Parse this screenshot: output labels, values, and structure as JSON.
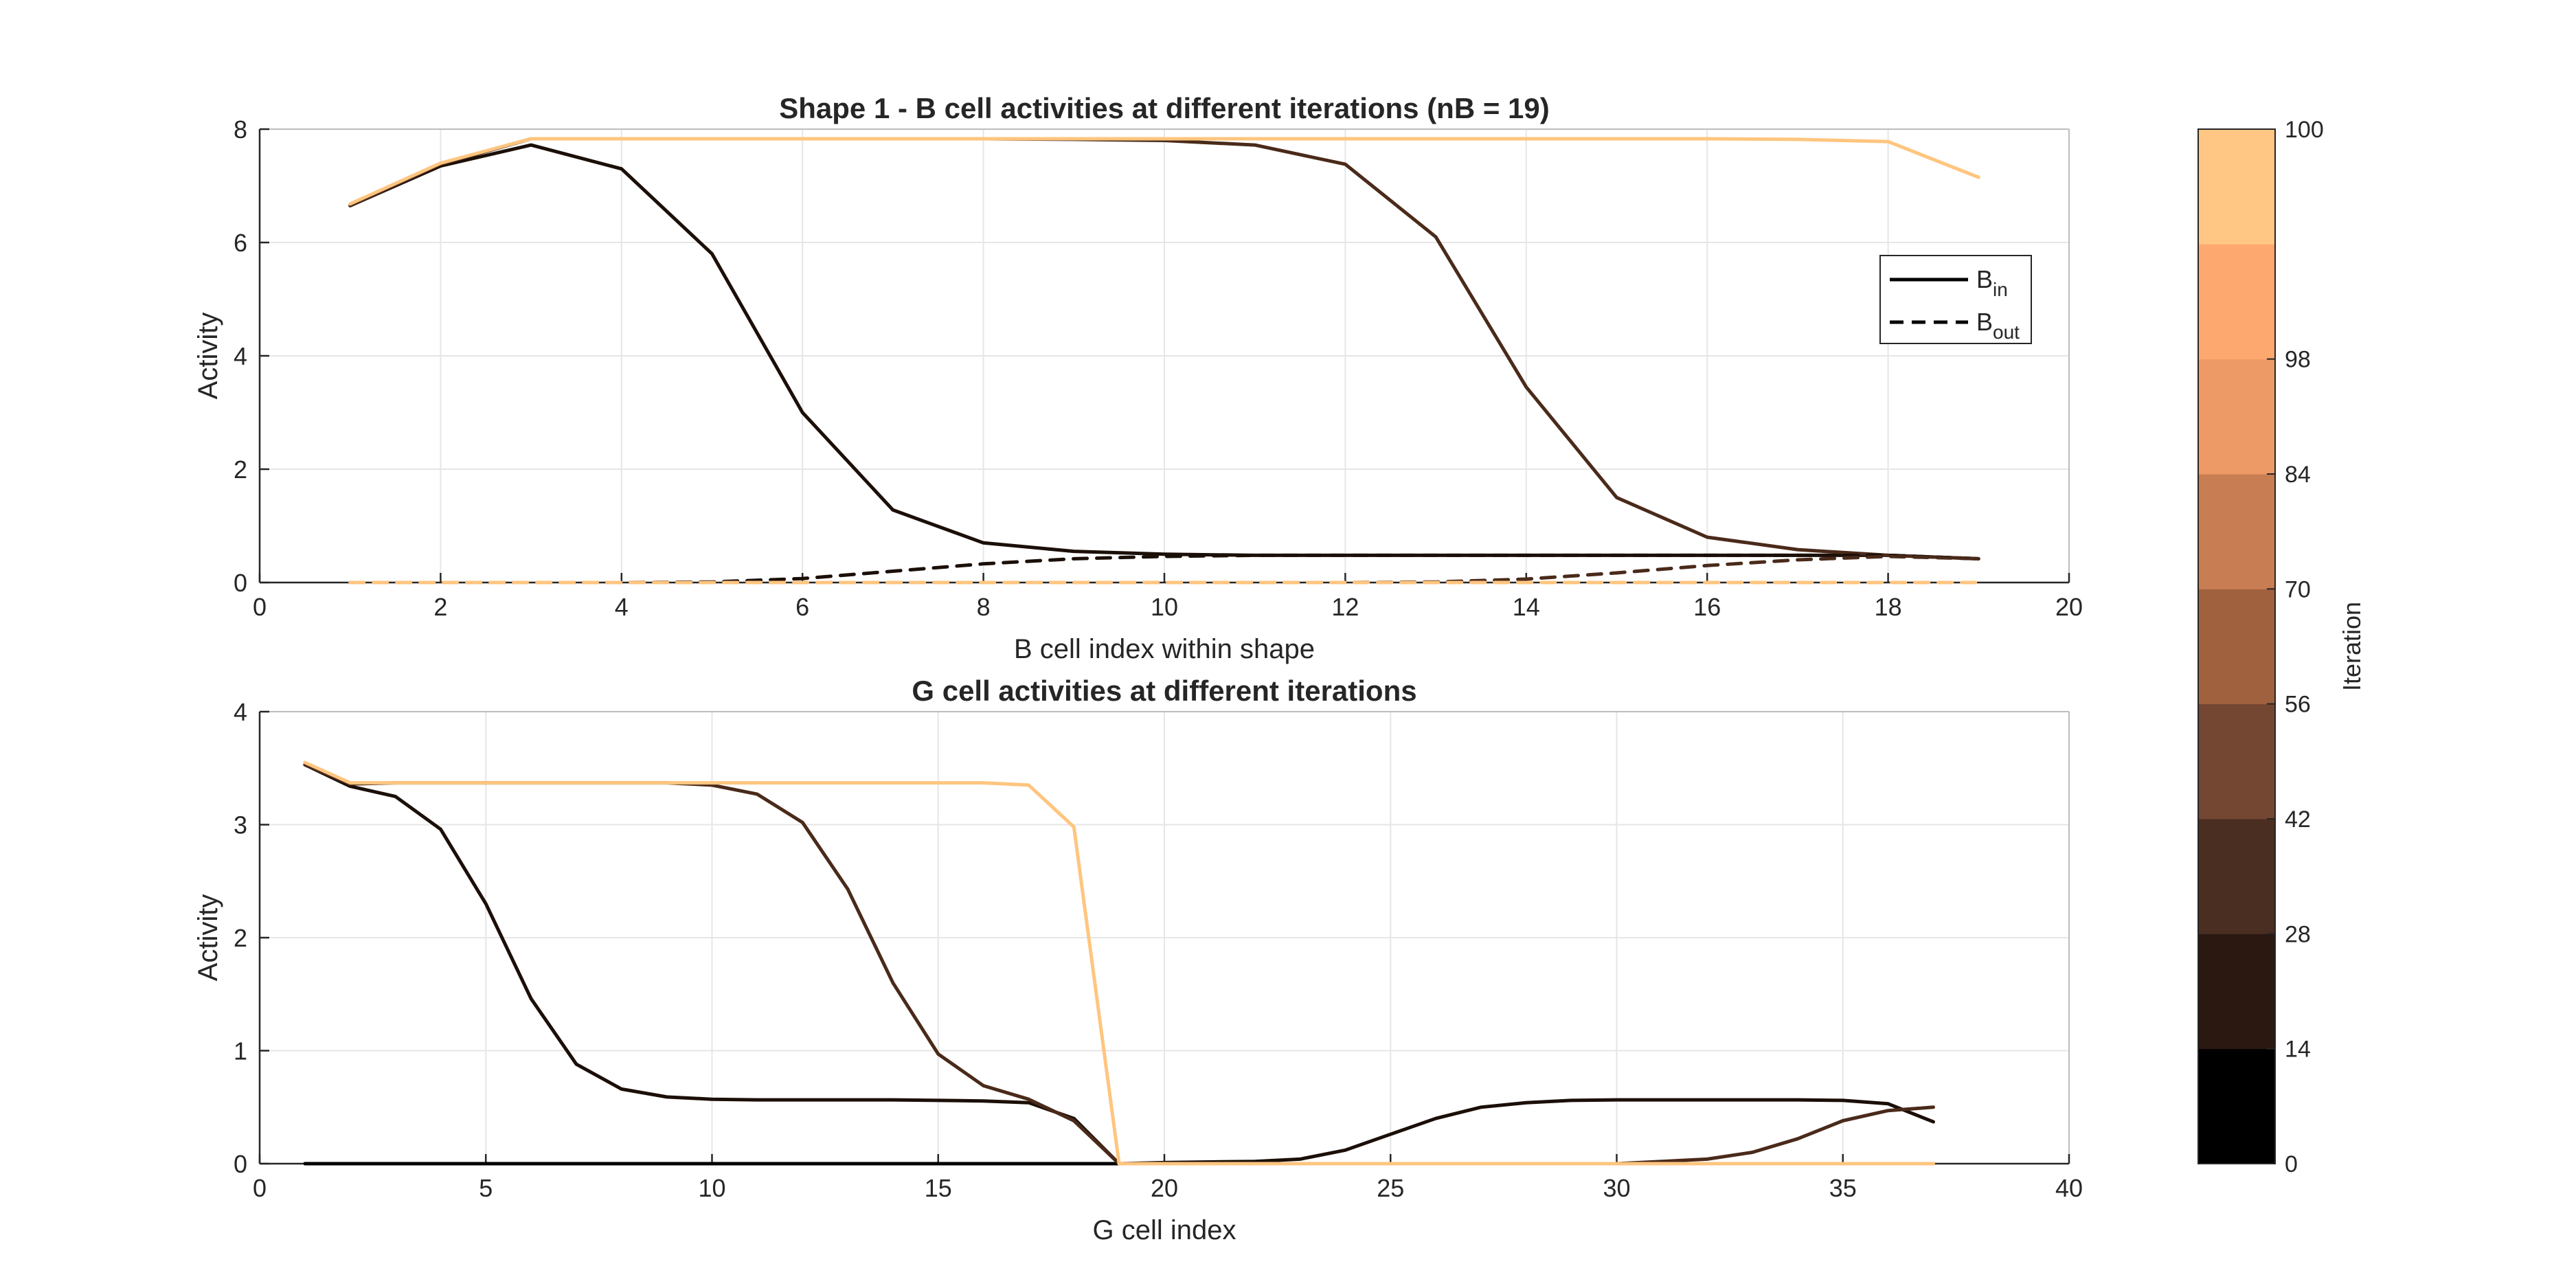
{
  "chart_data": [
    {
      "type": "line",
      "title": "Shape 1 - B cell activities at different iterations (nB = 19)",
      "xlabel": "B cell index within shape",
      "ylabel": "Activity",
      "xlim": [
        0,
        20
      ],
      "ylim": [
        0,
        8
      ],
      "xticks": [
        0,
        2,
        4,
        6,
        8,
        10,
        12,
        14,
        16,
        18,
        20
      ],
      "yticks": [
        0,
        2,
        4,
        6,
        8
      ],
      "grid": true,
      "legend": {
        "placement": "right",
        "entries": [
          {
            "main": "B",
            "sub": "in",
            "style": "solid"
          },
          {
            "main": "B",
            "sub": "out",
            "style": "dashed"
          }
        ]
      },
      "x": [
        1,
        2,
        3,
        4,
        5,
        6,
        7,
        8,
        9,
        10,
        11,
        12,
        13,
        14,
        15,
        16,
        17,
        18,
        19
      ],
      "series": [
        {
          "style": "solid",
          "color": "#1b0f08",
          "values": [
            6.65,
            7.35,
            7.72,
            7.3,
            5.8,
            3.0,
            1.28,
            0.7,
            0.55,
            0.5,
            0.48,
            0.48,
            0.48,
            0.48,
            0.48,
            0.48,
            0.48,
            0.48,
            0.42
          ]
        },
        {
          "style": "solid",
          "color": "#4a2a1a",
          "values": [
            6.65,
            7.38,
            7.83,
            7.83,
            7.83,
            7.83,
            7.83,
            7.83,
            7.82,
            7.8,
            7.72,
            7.38,
            6.1,
            3.45,
            1.5,
            0.8,
            0.58,
            0.48,
            0.42
          ]
        },
        {
          "style": "solid",
          "color": "#ffc57f",
          "values": [
            6.68,
            7.4,
            7.83,
            7.83,
            7.83,
            7.83,
            7.83,
            7.83,
            7.83,
            7.83,
            7.83,
            7.83,
            7.83,
            7.83,
            7.83,
            7.83,
            7.82,
            7.78,
            7.15
          ]
        },
        {
          "style": "dashed",
          "color": "#1b0f08",
          "values": [
            0,
            0,
            0,
            0,
            0.01,
            0.07,
            0.2,
            0.33,
            0.42,
            0.46,
            0.48,
            0.48,
            0.48,
            0.48,
            0.48,
            0.48,
            0.48,
            0.48,
            0.42
          ]
        },
        {
          "style": "dashed",
          "color": "#4a2a1a",
          "values": [
            0,
            0,
            0,
            0,
            0,
            0,
            0,
            0,
            0,
            0,
            0,
            0,
            0.01,
            0.06,
            0.17,
            0.3,
            0.4,
            0.46,
            0.42
          ]
        },
        {
          "style": "dashed",
          "color": "#ffc57f",
          "values": [
            0,
            0,
            0,
            0,
            0,
            0,
            0,
            0,
            0,
            0,
            0,
            0,
            0,
            0,
            0,
            0,
            0,
            0,
            0
          ]
        }
      ]
    },
    {
      "type": "line",
      "title": "G cell activities at different iterations",
      "xlabel": "G cell index",
      "ylabel": "Activity",
      "xlim": [
        0,
        40
      ],
      "ylim": [
        0,
        4
      ],
      "xticks": [
        0,
        5,
        10,
        15,
        20,
        25,
        30,
        35,
        40
      ],
      "yticks": [
        0,
        1,
        2,
        3,
        4
      ],
      "grid": true,
      "x": [
        1,
        2,
        3,
        4,
        5,
        6,
        7,
        8,
        9,
        10,
        11,
        12,
        13,
        14,
        15,
        16,
        17,
        18,
        19,
        20,
        21,
        22,
        23,
        24,
        25,
        26,
        27,
        28,
        29,
        30,
        31,
        32,
        33,
        34,
        35,
        36,
        37
      ],
      "series": [
        {
          "style": "solid",
          "color": "#000000",
          "values": [
            0,
            0,
            0,
            0,
            0,
            0,
            0,
            0,
            0,
            0,
            0,
            0,
            0,
            0,
            0,
            0,
            0,
            0,
            0,
            0,
            0,
            0,
            0,
            0,
            0,
            0,
            0,
            0,
            0,
            0,
            0,
            0,
            0,
            0,
            0,
            0,
            0
          ]
        },
        {
          "style": "solid",
          "color": "#1b0f08",
          "values": [
            3.53,
            3.34,
            3.25,
            2.96,
            2.3,
            1.46,
            0.88,
            0.66,
            0.59,
            0.57,
            0.565,
            0.565,
            0.565,
            0.565,
            0.56,
            0.555,
            0.54,
            0.4,
            0.0,
            0.01,
            0.015,
            0.02,
            0.04,
            0.12,
            0.26,
            0.4,
            0.5,
            0.54,
            0.56,
            0.565,
            0.565,
            0.565,
            0.565,
            0.565,
            0.56,
            0.53,
            0.37
          ]
        },
        {
          "style": "solid",
          "color": "#4a2a1a",
          "values": [
            3.53,
            3.36,
            3.37,
            3.37,
            3.37,
            3.37,
            3.37,
            3.37,
            3.37,
            3.35,
            3.27,
            3.02,
            2.43,
            1.6,
            0.97,
            0.69,
            0.57,
            0.38,
            0.0,
            0.0,
            0.0,
            0.0,
            0.0,
            0.0,
            0.0,
            0.0,
            0.0,
            0.0,
            0.0,
            0.0,
            0.02,
            0.04,
            0.1,
            0.22,
            0.38,
            0.47,
            0.5
          ]
        },
        {
          "style": "solid",
          "color": "#ffc57f",
          "values": [
            3.55,
            3.37,
            3.37,
            3.37,
            3.37,
            3.37,
            3.37,
            3.37,
            3.37,
            3.37,
            3.37,
            3.37,
            3.37,
            3.37,
            3.37,
            3.37,
            3.35,
            2.98,
            0.0,
            0,
            0,
            0,
            0,
            0,
            0,
            0,
            0,
            0,
            0,
            0,
            0,
            0,
            0,
            0,
            0,
            0,
            0
          ]
        }
      ]
    }
  ],
  "colorbar": {
    "label": "Iteration",
    "ticks": [
      "0",
      "14",
      "28",
      "42",
      "56",
      "70",
      "84",
      "98",
      "100"
    ],
    "colors": [
      "#000000",
      "#2a1811",
      "#4a2e21",
      "#744732",
      "#a0613f",
      "#c87d52",
      "#ee9a66",
      "#fda86e",
      "#ffc783"
    ]
  }
}
